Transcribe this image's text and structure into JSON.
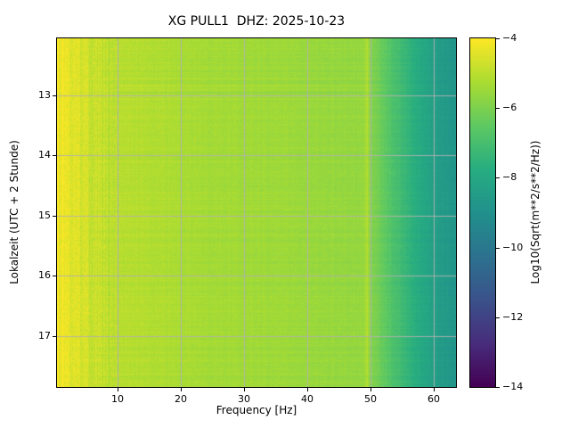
{
  "figure": {
    "background": "#ffffff",
    "axes_frame_color": "#000000"
  },
  "chart_data": {
    "type": "heatmap",
    "subtype": "spectrogram",
    "title": "XG PULL1  DHZ: 2025-10-23",
    "xlabel": "Frequency [Hz]",
    "ylabel": "Lokalzeit (UTC + 2 Stunde)",
    "colorbar_label": "Log10(Sqrt(m**2/s**2/Hz))",
    "xlim": [
      0.5,
      63.5
    ],
    "ylim_time_hours": [
      12.05,
      17.85
    ],
    "y_axis_increases_downward": true,
    "xticks": [
      10,
      20,
      30,
      40,
      50,
      60
    ],
    "yticks": [
      13,
      14,
      15,
      16,
      17
    ],
    "colorbar_ticks": [
      -4,
      -6,
      -8,
      -10,
      -12,
      -14
    ],
    "clim": [
      -14,
      -4
    ],
    "colormap": "viridis",
    "colormap_stops": [
      [
        0.0,
        "#440154"
      ],
      [
        0.125,
        "#472d7b"
      ],
      [
        0.25,
        "#3b528b"
      ],
      [
        0.375,
        "#2c728e"
      ],
      [
        0.5,
        "#21918c"
      ],
      [
        0.625,
        "#27ad81"
      ],
      [
        0.75,
        "#5ec962"
      ],
      [
        0.875,
        "#aadc32"
      ],
      [
        1.0,
        "#fde725"
      ]
    ],
    "grid": true,
    "grid_color": "#b0b0b0",
    "spectral_profile": {
      "description": "Approximate median Log10(Sqrt(m**2/s**2/Hz)) versus frequency; nearly constant over the displayed time span",
      "frequency_hz": [
        0.5,
        2,
        5,
        10,
        15,
        20,
        25,
        30,
        35,
        40,
        45,
        48,
        49,
        49.5,
        50,
        51,
        53,
        55,
        57,
        59,
        61,
        63.5
      ],
      "log10_value": [
        -4.1,
        -4.3,
        -4.7,
        -5.0,
        -5.15,
        -5.25,
        -5.35,
        -5.4,
        -5.45,
        -5.5,
        -5.55,
        -5.6,
        -5.55,
        -5.2,
        -5.9,
        -6.1,
        -6.7,
        -7.2,
        -7.7,
        -8.1,
        -8.5,
        -8.8
      ]
    },
    "features": [
      {
        "name": "low-frequency-bright-band",
        "frequency_hz": "0.5-5",
        "description": "Bright yellow band with vertical speckle texture at the lowest frequencies"
      },
      {
        "name": "narrowband-line",
        "frequency_hz": 49.5,
        "description": "Faint brighter vertical line near 50 Hz persisting over the whole time span"
      },
      {
        "name": "high-frequency-rolloff",
        "frequency_hz": "50-63.5",
        "description": "Amplitude falls off above 50 Hz, colors shift from yellow-green to teal"
      },
      {
        "name": "horizontal-streaks",
        "time_hours": "12.6-13.1",
        "description": "Faint broadband horizontal streaks in the upper part of the plot"
      }
    ]
  }
}
